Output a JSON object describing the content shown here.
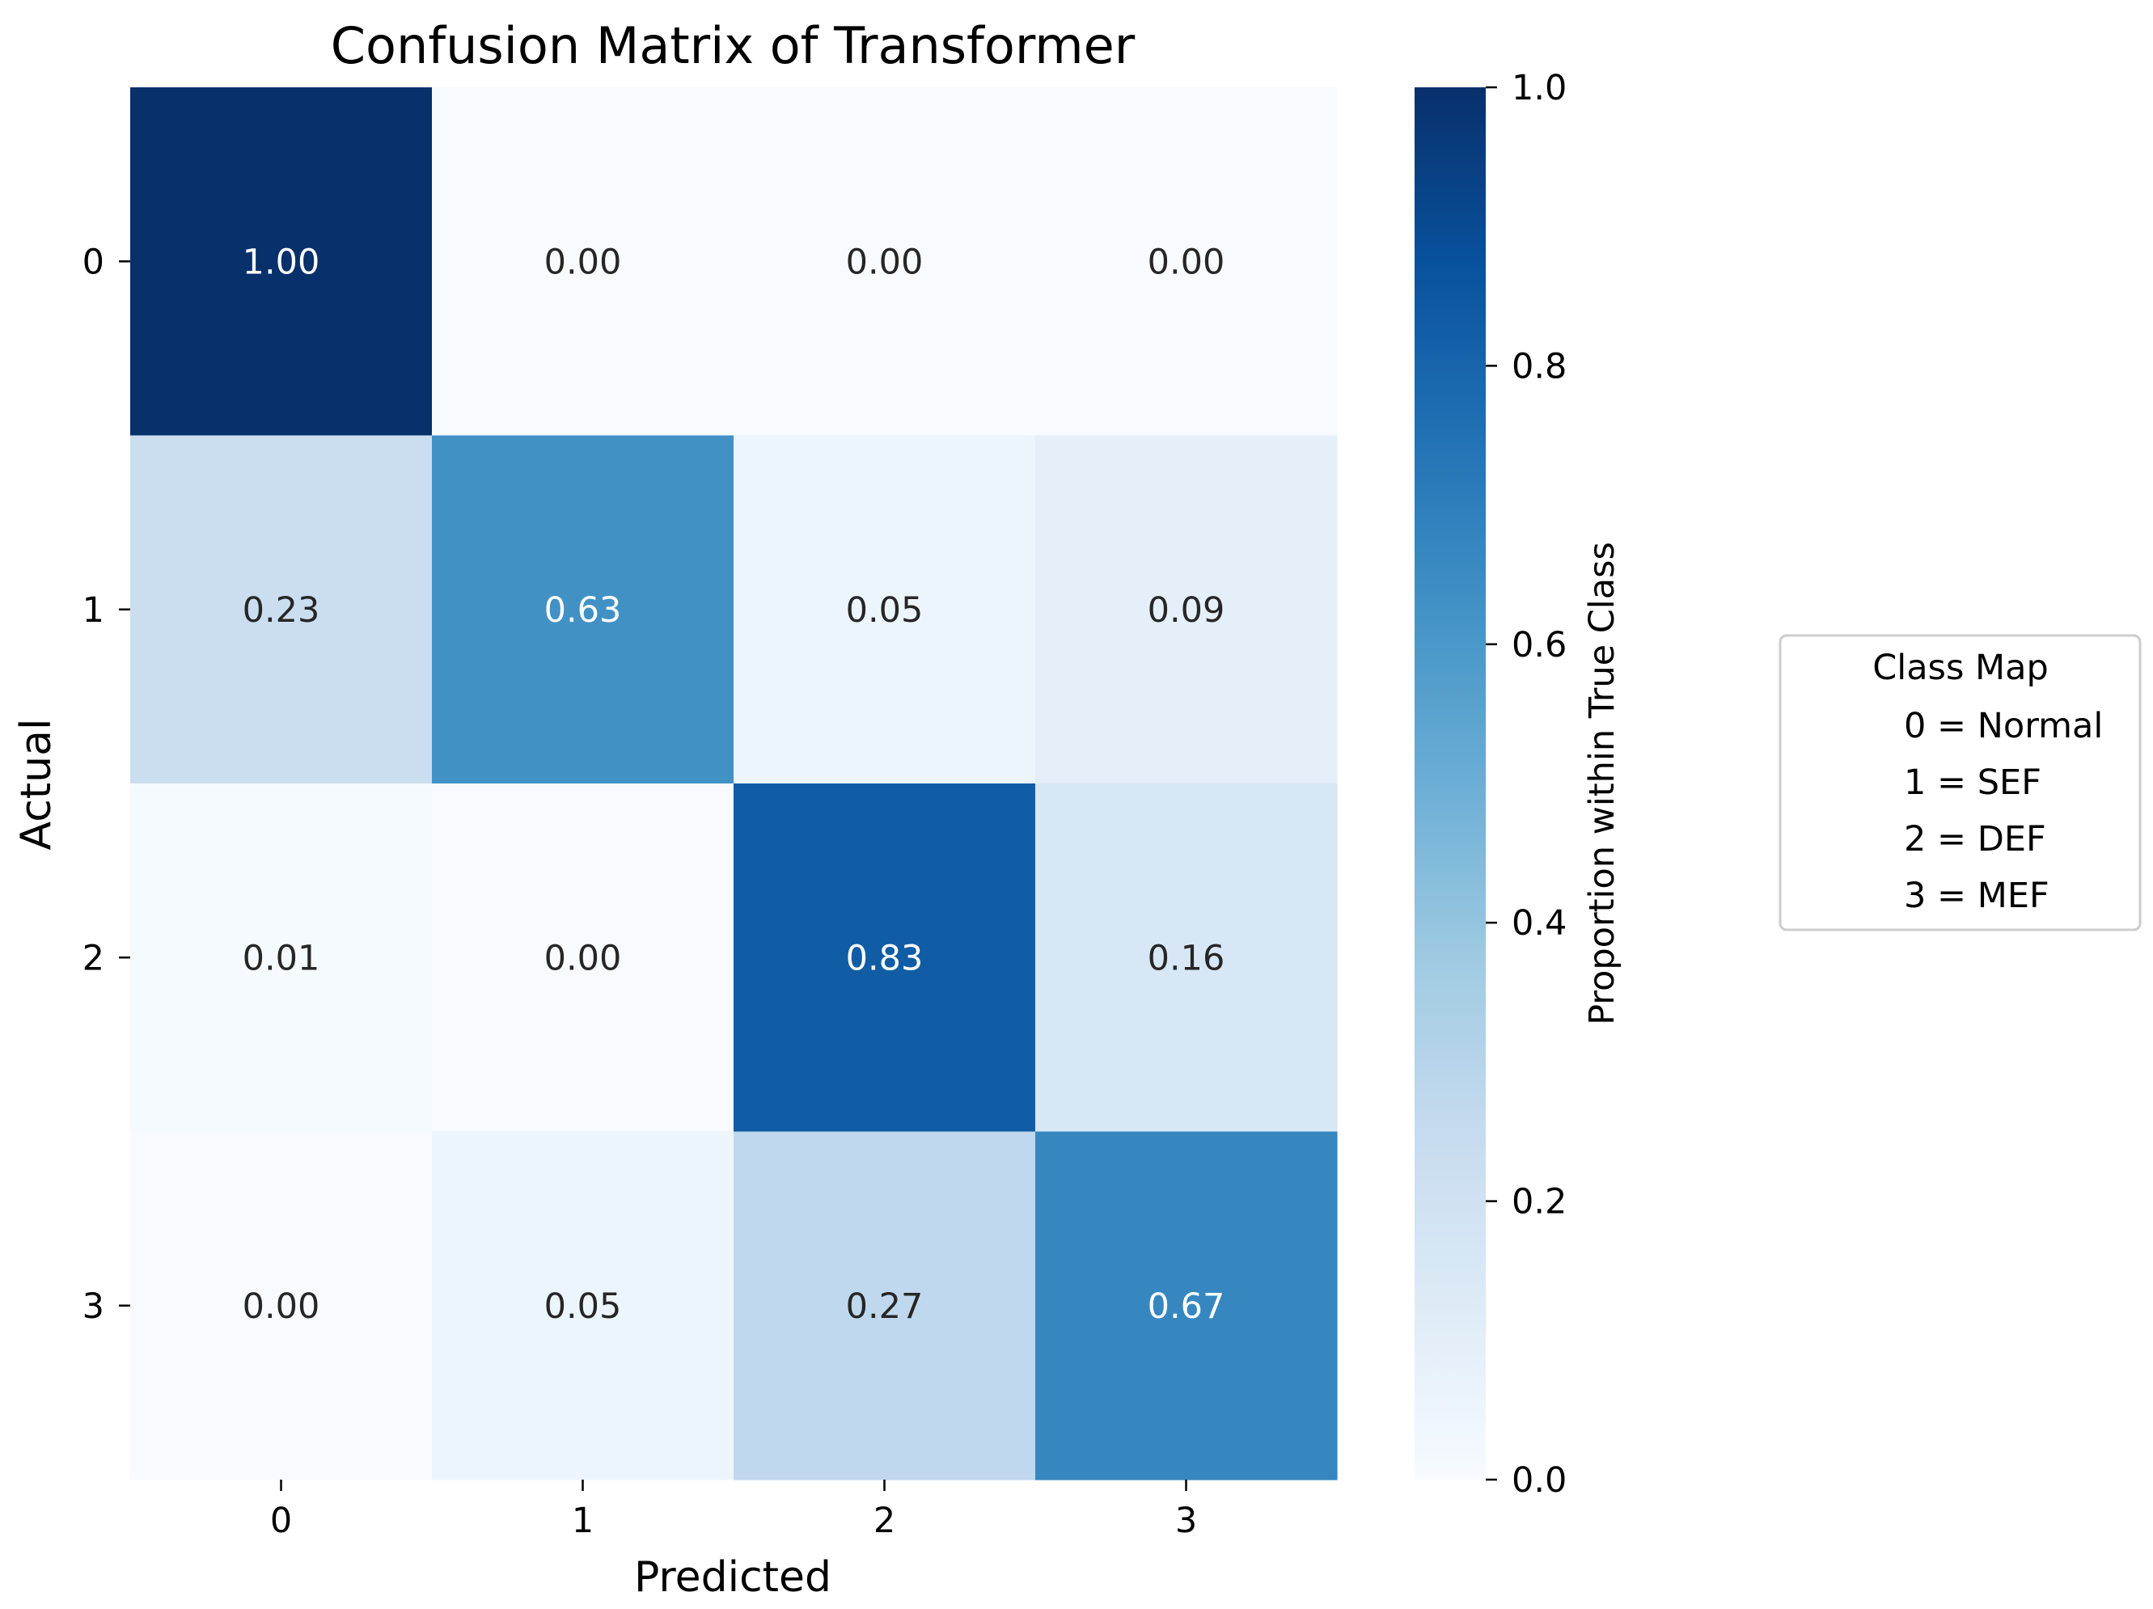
{
  "chart_data": {
    "type": "heatmap",
    "title": "Confusion Matrix of Transformer",
    "xlabel": "Predicted",
    "ylabel": "Actual",
    "x_categories": [
      "0",
      "1",
      "2",
      "3"
    ],
    "y_categories": [
      "0",
      "1",
      "2",
      "3"
    ],
    "matrix": [
      [
        1.0,
        0.0,
        0.0,
        0.0
      ],
      [
        0.23,
        0.63,
        0.05,
        0.09
      ],
      [
        0.01,
        0.0,
        0.83,
        0.16
      ],
      [
        0.0,
        0.05,
        0.27,
        0.67
      ]
    ],
    "value_format": "2 decimals",
    "colormap": "Blues",
    "colorbar": {
      "label": "Proportion within True Class",
      "range": [
        0.0,
        1.0
      ],
      "ticks": [
        0.0,
        0.2,
        0.4,
        0.6,
        0.8,
        1.0
      ],
      "tick_labels": [
        "0.0",
        "0.2",
        "0.4",
        "0.6",
        "0.8",
        "1.0"
      ]
    },
    "legend": {
      "title": "Class Map",
      "placement": "right",
      "entries": [
        "0 = Normal",
        "1 = SEF",
        "2 = DEF",
        "3 = MEF"
      ]
    }
  }
}
